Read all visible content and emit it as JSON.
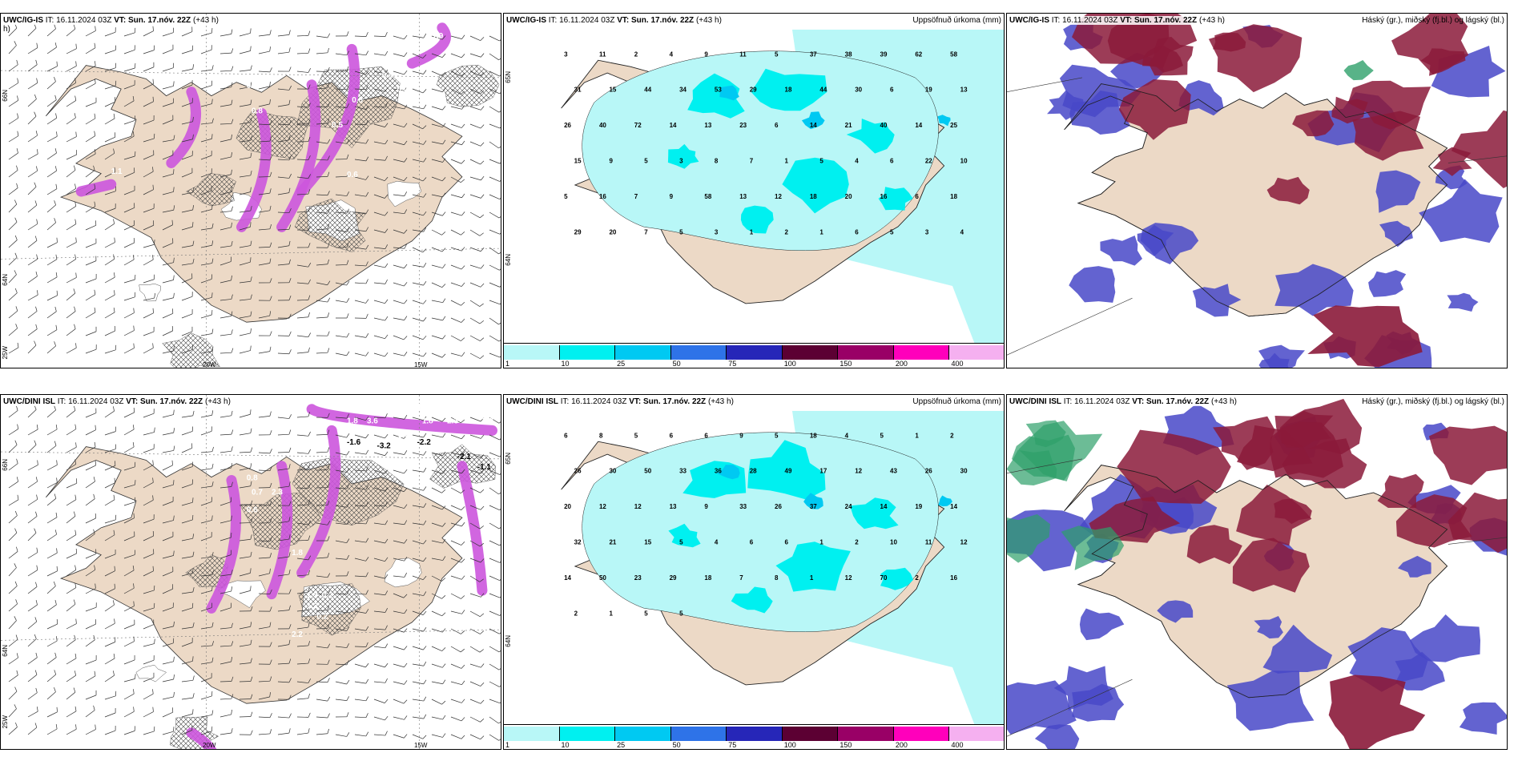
{
  "palette": {
    "land": "#ecd9c6",
    "precip": [
      "#b8f7f7",
      "#00f0f0",
      "#00c9f2",
      "#2e73e8",
      "#2626b8",
      "#5c0033",
      "#990066",
      "#ff00bb",
      "#f5b0f0"
    ],
    "wind_land": "#d9c6b3",
    "snow_mag": "#cc55dd",
    "high": "#8b1a3a",
    "mid": "#4848c8",
    "low": "#2ea06a"
  },
  "panels": [
    {
      "id": "p1",
      "model": "UWC/IG-IS",
      "it": "IT: 16.11.2024 03Z",
      "vt_label": "VT:",
      "vt": "Sun. 17.nóv. 22Z",
      "lead": "(+43 h)",
      "overflow": "h)",
      "right": "",
      "type": "wind",
      "values": [
        "1.9",
        "0.4",
        "0.4",
        "0.8",
        "0.6",
        "0.8",
        "0.5",
        "0.6",
        "1.1"
      ],
      "axis": {
        "lat1": "66N",
        "lat2": "64N",
        "lon1": "25W",
        "lon2": "20W",
        "lon3": "15W"
      }
    },
    {
      "id": "p2",
      "model": "UWC/IG-IS",
      "it": "IT: 16.11.2024 03Z",
      "vt_label": "VT:",
      "vt": "Sun. 17.nóv. 22Z",
      "lead": "(+43 h)",
      "right": "Uppsöfnuð úrkoma (mm)",
      "type": "precip",
      "values": [
        "3",
        "11",
        "2",
        "4",
        "9",
        "11",
        "5",
        "37",
        "38",
        "39",
        "62",
        "58",
        "31",
        "15",
        "44",
        "34",
        "53",
        "29",
        "18",
        "44",
        "30",
        "6",
        "19",
        "13",
        "26",
        "40",
        "72",
        "14",
        "13",
        "23",
        "6",
        "14",
        "21",
        "40",
        "14",
        "25",
        "15",
        "9",
        "5",
        "3",
        "8",
        "7",
        "1",
        "5",
        "4",
        "6",
        "22",
        "10",
        "5",
        "16",
        "7",
        "9",
        "58",
        "13",
        "12",
        "18",
        "20",
        "16",
        "6",
        "18",
        "29",
        "20",
        "7",
        "5",
        "3",
        "1",
        "2",
        "1",
        "6",
        "5",
        "3",
        "4"
      ],
      "axis": {
        "lat1": "65N",
        "lat2": "64N"
      },
      "colorbar": [
        "1",
        "10",
        "25",
        "50",
        "75",
        "100",
        "150",
        "200",
        "400"
      ]
    },
    {
      "id": "p3",
      "model": "UWC/IG-IS",
      "it": "IT: 16.11.2024 03Z",
      "vt_label": "VT:",
      "vt": "Sun. 17.nóv. 22Z",
      "lead": "(+43 h)",
      "right": "Háský (gr.), miðský (fj.bl.) og lágský (bl.)",
      "type": "cloud"
    },
    {
      "id": "p4",
      "model": "UWC/DINI ISL",
      "it": "IT: 16.11.2024 03Z",
      "vt_label": "VT:",
      "vt": "Sun. 17.nóv. 22Z",
      "lead": "(+43 h)",
      "right": "",
      "type": "wind",
      "values": [
        "2.2",
        "1.8",
        "3.6",
        "1.9",
        "1.8",
        "2.3",
        "3.8",
        "1.4",
        "-1.6",
        "-3.2",
        "-2.2",
        "-2.1",
        "-1.1",
        "1.3",
        "0.8",
        "2.3",
        "0.7",
        "0.6",
        "1.8",
        "1.3",
        "0.2",
        "1.3",
        "0.2",
        "2.2"
      ],
      "axis": {
        "lat1": "66N",
        "lat2": "64N",
        "lon1": "25W",
        "lon2": "20W",
        "lon3": "15W"
      }
    },
    {
      "id": "p5",
      "model": "UWC/DINI ISL",
      "it": "IT: 16.11.2024 03Z",
      "vt_label": "VT:",
      "vt": "Sun. 17.nóv. 22Z",
      "lead": "(+43 h)",
      "right": "Uppsöfnuð úrkoma (mm)",
      "type": "precip",
      "values": [
        "6",
        "8",
        "5",
        "6",
        "6",
        "9",
        "5",
        "18",
        "4",
        "5",
        "1",
        "2",
        "26",
        "30",
        "50",
        "33",
        "36",
        "28",
        "49",
        "17",
        "12",
        "43",
        "26",
        "30",
        "20",
        "12",
        "12",
        "13",
        "9",
        "33",
        "26",
        "37",
        "24",
        "14",
        "19",
        "14",
        "32",
        "21",
        "15",
        "5",
        "4",
        "6",
        "6",
        "1",
        "2",
        "10",
        "11",
        "12",
        "14",
        "50",
        "23",
        "29",
        "18",
        "7",
        "8",
        "1",
        "12",
        "70",
        "2",
        "16",
        "2",
        "1",
        "5",
        "5"
      ],
      "axis": {
        "lat1": "65N",
        "lat2": "64N"
      },
      "colorbar": [
        "1",
        "10",
        "25",
        "50",
        "75",
        "100",
        "150",
        "200",
        "400"
      ]
    },
    {
      "id": "p6",
      "model": "UWC/DINI ISL",
      "it": "IT: 16.11.2024 03Z",
      "vt_label": "VT:",
      "vt": "Sun. 17.nóv. 22Z",
      "lead": "(+43 h)",
      "right": "Háský (gr.), miðský (fj.bl.) og lágský (bl.)",
      "type": "cloud"
    }
  ]
}
